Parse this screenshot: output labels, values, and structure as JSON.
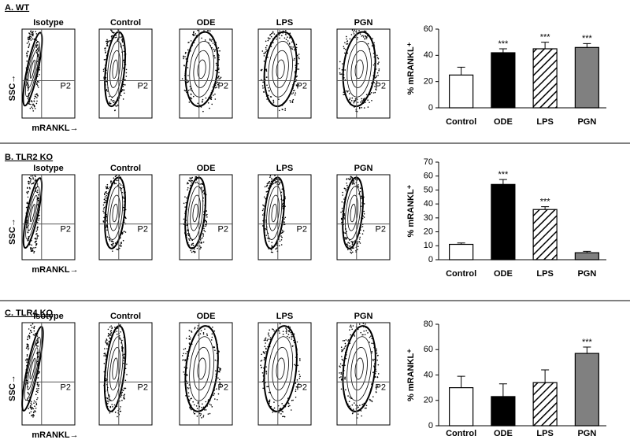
{
  "panels": [
    {
      "title": "A. WT",
      "plots": [
        "Isotype",
        "Control",
        "ODE",
        "LPS",
        "PGN"
      ],
      "gate": "P2",
      "y_axis": "SSC→",
      "x_axis": "mRANKL→"
    },
    {
      "title": "B. TLR2 KO",
      "plots": [
        "Isotype",
        "Control",
        "ODE",
        "LPS",
        "PGN"
      ],
      "gate": "P2",
      "y_axis": "SSC→",
      "x_axis": "mRANKL→"
    },
    {
      "title": "C. TLR4 KO",
      "plots": [
        "Isotype",
        "Control",
        "ODE",
        "LPS",
        "PGN"
      ],
      "gate": "P2",
      "y_axis": "SSC→",
      "x_axis": "mRANKL→"
    }
  ],
  "chart_data": [
    {
      "type": "bar",
      "ylabel": "% mRANKL⁺",
      "categories": [
        "Control",
        "ODE",
        "LPS",
        "PGN"
      ],
      "values": [
        25,
        42,
        45,
        46
      ],
      "errors": [
        6,
        3,
        5,
        3
      ],
      "significance": [
        null,
        "***",
        "***",
        "***"
      ],
      "fills": [
        "#ffffff",
        "#000000",
        "#ffffff",
        "#808080"
      ],
      "hatched": [
        false,
        false,
        true,
        false
      ],
      "ylim": [
        0,
        60
      ],
      "yticks": [
        0,
        20,
        40,
        60
      ]
    },
    {
      "type": "bar",
      "ylabel": "% mRANKL⁺",
      "categories": [
        "Control",
        "ODE",
        "LPS",
        "PGN"
      ],
      "values": [
        11,
        54,
        36,
        5
      ],
      "errors": [
        1,
        3.5,
        2,
        1
      ],
      "significance": [
        null,
        "***",
        "***",
        null
      ],
      "fills": [
        "#ffffff",
        "#000000",
        "#ffffff",
        "#808080"
      ],
      "hatched": [
        false,
        false,
        true,
        false
      ],
      "ylim": [
        0,
        70
      ],
      "yticks": [
        0,
        10,
        20,
        30,
        40,
        50,
        60,
        70
      ]
    },
    {
      "type": "bar",
      "ylabel": "% mRANKL⁺",
      "categories": [
        "Control",
        "ODE",
        "LPS",
        "PGN"
      ],
      "values": [
        30,
        23,
        34,
        57
      ],
      "errors": [
        9,
        10,
        10,
        5
      ],
      "significance": [
        null,
        null,
        null,
        "***"
      ],
      "fills": [
        "#ffffff",
        "#000000",
        "#ffffff",
        "#808080"
      ],
      "hatched": [
        false,
        false,
        true,
        false
      ],
      "ylim": [
        0,
        80
      ],
      "yticks": [
        0,
        20,
        40,
        60,
        80
      ]
    }
  ]
}
